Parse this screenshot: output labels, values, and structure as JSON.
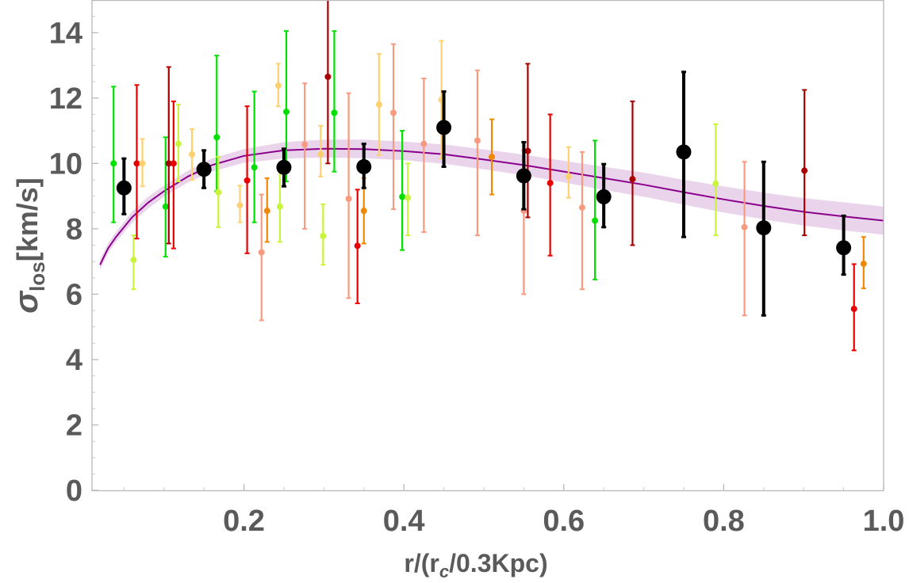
{
  "chart_data": {
    "type": "scatter",
    "title": "",
    "xlim": [
      0.01,
      1.0
    ],
    "ylim": [
      0,
      15
    ],
    "x_ticks": [
      0.2,
      0.4,
      0.6,
      0.8,
      1.0
    ],
    "x_tick_labels": [
      "0.2",
      "0.4",
      "0.6",
      "0.8",
      "1.0"
    ],
    "y_ticks": [
      0,
      2,
      4,
      6,
      8,
      10,
      12,
      14
    ],
    "y_tick_labels": [
      "0",
      "2",
      "4",
      "6",
      "8",
      "10",
      "12",
      "14"
    ],
    "xlabel_parts": {
      "pre": "r/(r",
      "sub": "c",
      "post": "/0.3Kpc)"
    },
    "ylabel_parts": {
      "sigma": "σ",
      "sub": "los",
      "post": "[km/s]"
    },
    "grid": false,
    "binned_series": {
      "color": "#000000",
      "points": [
        {
          "x": 0.05,
          "y": 9.25,
          "lo": 8.45,
          "hi": 10.15
        },
        {
          "x": 0.15,
          "y": 9.82,
          "lo": 9.25,
          "hi": 10.4
        },
        {
          "x": 0.25,
          "y": 9.88,
          "lo": 9.3,
          "hi": 10.45
        },
        {
          "x": 0.35,
          "y": 9.9,
          "lo": 9.25,
          "hi": 10.6
        },
        {
          "x": 0.45,
          "y": 11.1,
          "lo": 9.9,
          "hi": 12.2
        },
        {
          "x": 0.55,
          "y": 9.62,
          "lo": 8.6,
          "hi": 10.65
        },
        {
          "x": 0.65,
          "y": 8.98,
          "lo": 8.05,
          "hi": 9.98
        },
        {
          "x": 0.75,
          "y": 10.35,
          "lo": 7.75,
          "hi": 12.8
        },
        {
          "x": 0.85,
          "y": 8.03,
          "lo": 5.35,
          "hi": 10.05
        },
        {
          "x": 0.95,
          "y": 7.42,
          "lo": 6.6,
          "hi": 8.4
        }
      ]
    },
    "scatter_series": [
      {
        "x": 0.037,
        "y": 10.0,
        "lo": 8.2,
        "hi": 12.35,
        "color": "#00e000"
      },
      {
        "x": 0.062,
        "y": 7.05,
        "lo": 6.15,
        "hi": 7.8,
        "color": "#c8f53a"
      },
      {
        "x": 0.066,
        "y": 10.0,
        "lo": 7.7,
        "hi": 12.4,
        "color": "#e80000"
      },
      {
        "x": 0.073,
        "y": 10.0,
        "lo": 9.3,
        "hi": 10.75,
        "color": "#ffd070"
      },
      {
        "x": 0.102,
        "y": 8.68,
        "lo": 7.15,
        "hi": 10.8,
        "color": "#00e000"
      },
      {
        "x": 0.106,
        "y": 10.0,
        "lo": 7.55,
        "hi": 12.95,
        "color": "#a80000"
      },
      {
        "x": 0.112,
        "y": 10.0,
        "lo": 7.4,
        "hi": 11.9,
        "color": "#e80000"
      },
      {
        "x": 0.118,
        "y": 10.6,
        "lo": 9.45,
        "hi": 11.8,
        "color": "#c8f53a"
      },
      {
        "x": 0.135,
        "y": 10.28,
        "lo": 9.5,
        "hi": 11.05,
        "color": "#ffd070"
      },
      {
        "x": 0.166,
        "y": 10.8,
        "lo": 9.15,
        "hi": 13.3,
        "color": "#00e000"
      },
      {
        "x": 0.168,
        "y": 9.12,
        "lo": 8.05,
        "hi": 10.2,
        "color": "#c8f53a"
      },
      {
        "x": 0.195,
        "y": 8.72,
        "lo": 8.2,
        "hi": 9.32,
        "color": "#ffd070"
      },
      {
        "x": 0.204,
        "y": 9.48,
        "lo": 7.25,
        "hi": 11.75,
        "color": "#e80000"
      },
      {
        "x": 0.213,
        "y": 9.88,
        "lo": 8.2,
        "hi": 12.2,
        "color": "#00e000"
      },
      {
        "x": 0.222,
        "y": 7.28,
        "lo": 5.2,
        "hi": 9.05,
        "color": "#f79a80"
      },
      {
        "x": 0.229,
        "y": 8.55,
        "lo": 7.6,
        "hi": 9.55,
        "color": "#f08800"
      },
      {
        "x": 0.243,
        "y": 12.38,
        "lo": 11.75,
        "hi": 13.05,
        "color": "#ffd070"
      },
      {
        "x": 0.245,
        "y": 8.68,
        "lo": 7.6,
        "hi": 9.85,
        "color": "#c8f53a"
      },
      {
        "x": 0.253,
        "y": 11.58,
        "lo": 9.45,
        "hi": 14.05,
        "color": "#00e000"
      },
      {
        "x": 0.276,
        "y": 10.58,
        "lo": 8.0,
        "hi": 12.45,
        "color": "#f79a80"
      },
      {
        "x": 0.296,
        "y": 10.28,
        "lo": 9.6,
        "hi": 11.15,
        "color": "#ffd070"
      },
      {
        "x": 0.299,
        "y": 7.78,
        "lo": 6.9,
        "hi": 8.75,
        "color": "#c8f53a"
      },
      {
        "x": 0.305,
        "y": 12.65,
        "lo": 10.0,
        "hi": 15.2,
        "color": "#a80000"
      },
      {
        "x": 0.313,
        "y": 11.55,
        "lo": 9.75,
        "hi": 14.05,
        "color": "#00e000"
      },
      {
        "x": 0.331,
        "y": 8.92,
        "lo": 5.88,
        "hi": 12.15,
        "color": "#f79a80"
      },
      {
        "x": 0.342,
        "y": 7.48,
        "lo": 5.72,
        "hi": 9.2,
        "color": "#e80000"
      },
      {
        "x": 0.35,
        "y": 8.55,
        "lo": 7.55,
        "hi": 9.55,
        "color": "#f08800"
      },
      {
        "x": 0.369,
        "y": 11.8,
        "lo": 10.25,
        "hi": 13.35,
        "color": "#ffd070"
      },
      {
        "x": 0.387,
        "y": 11.55,
        "lo": 8.6,
        "hi": 13.65,
        "color": "#f79a80"
      },
      {
        "x": 0.398,
        "y": 8.98,
        "lo": 7.35,
        "hi": 11.0,
        "color": "#00e000"
      },
      {
        "x": 0.405,
        "y": 8.95,
        "lo": 7.8,
        "hi": 10.0,
        "color": "#c8f53a"
      },
      {
        "x": 0.425,
        "y": 10.6,
        "lo": 7.9,
        "hi": 12.6,
        "color": "#f79a80"
      },
      {
        "x": 0.447,
        "y": 11.95,
        "lo": 10.15,
        "hi": 13.75,
        "color": "#ffd070"
      },
      {
        "x": 0.492,
        "y": 10.7,
        "lo": 7.8,
        "hi": 12.85,
        "color": "#f79a80"
      },
      {
        "x": 0.51,
        "y": 10.2,
        "lo": 9.05,
        "hi": 11.35,
        "color": "#f08800"
      },
      {
        "x": 0.55,
        "y": 8.55,
        "lo": 6.0,
        "hi": 10.4,
        "color": "#f79a80"
      },
      {
        "x": 0.555,
        "y": 10.38,
        "lo": 8.35,
        "hi": 13.05,
        "color": "#a80000"
      },
      {
        "x": 0.583,
        "y": 9.4,
        "lo": 7.18,
        "hi": 11.5,
        "color": "#e80000"
      },
      {
        "x": 0.606,
        "y": 9.6,
        "lo": 8.95,
        "hi": 10.5,
        "color": "#ffd070"
      },
      {
        "x": 0.623,
        "y": 8.65,
        "lo": 6.15,
        "hi": 10.35,
        "color": "#f79a80"
      },
      {
        "x": 0.639,
        "y": 8.25,
        "lo": 6.45,
        "hi": 10.7,
        "color": "#00e000"
      },
      {
        "x": 0.686,
        "y": 9.52,
        "lo": 7.5,
        "hi": 11.9,
        "color": "#a80000"
      },
      {
        "x": 0.79,
        "y": 9.38,
        "lo": 7.8,
        "hi": 11.2,
        "color": "#c8f53a"
      },
      {
        "x": 0.826,
        "y": 8.05,
        "lo": 5.35,
        "hi": 10.05,
        "color": "#f79a80"
      },
      {
        "x": 0.901,
        "y": 9.78,
        "lo": 7.8,
        "hi": 12.25,
        "color": "#a80000"
      },
      {
        "x": 0.963,
        "y": 5.55,
        "lo": 4.28,
        "hi": 6.92,
        "color": "#e80000"
      },
      {
        "x": 0.975,
        "y": 6.93,
        "lo": 6.18,
        "hi": 7.75,
        "color": "#f08800"
      }
    ],
    "model_curve": {
      "color": "#8b008b",
      "band_color": "#e5cce8",
      "x": [
        0.02,
        0.03,
        0.04,
        0.06,
        0.08,
        0.1,
        0.13,
        0.16,
        0.2,
        0.25,
        0.3,
        0.35,
        0.4,
        0.45,
        0.5,
        0.55,
        0.6,
        0.65,
        0.7,
        0.75,
        0.8,
        0.85,
        0.9,
        0.95,
        1.0
      ],
      "y": [
        6.9,
        7.4,
        7.75,
        8.35,
        8.8,
        9.15,
        9.6,
        9.95,
        10.23,
        10.4,
        10.45,
        10.44,
        10.38,
        10.28,
        10.12,
        9.95,
        9.75,
        9.55,
        9.35,
        9.12,
        8.9,
        8.7,
        8.52,
        8.38,
        8.25
      ],
      "band_lo": [
        6.75,
        7.25,
        7.6,
        8.18,
        8.62,
        8.98,
        9.42,
        9.75,
        10.02,
        10.15,
        10.18,
        10.16,
        10.1,
        9.99,
        9.82,
        9.64,
        9.42,
        9.19,
        8.98,
        8.74,
        8.5,
        8.29,
        8.1,
        7.95,
        7.82
      ],
      "band_hi": [
        7.05,
        7.55,
        7.9,
        8.52,
        8.98,
        9.32,
        9.78,
        10.15,
        10.44,
        10.65,
        10.73,
        10.73,
        10.67,
        10.58,
        10.43,
        10.27,
        10.08,
        9.9,
        9.72,
        9.5,
        9.3,
        9.11,
        8.94,
        8.81,
        8.68
      ]
    }
  }
}
